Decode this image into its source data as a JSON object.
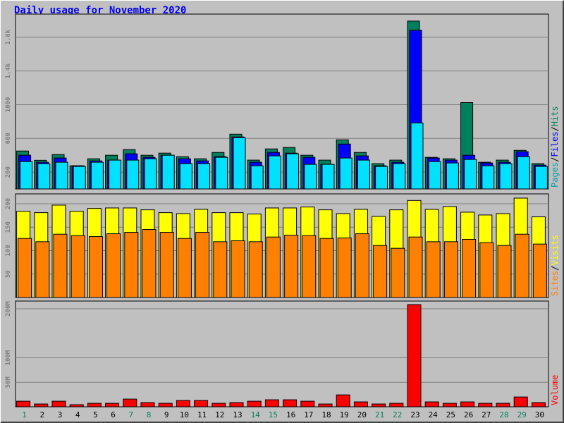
{
  "legend_separator": "/",
  "chart_data": [
    {
      "type": "bar",
      "title": "Daily usage for November 2020",
      "ylim": [
        0,
        2058
      ],
      "yticks": [
        200,
        600,
        1000,
        {
          "value": 1400,
          "label": "1.4k"
        },
        {
          "value": 1800,
          "label": "1.8k"
        }
      ],
      "grid": true,
      "series": [
        {
          "name": "Hits",
          "color": "#00805c",
          "values": [
            450,
            340,
            408,
            275,
            358,
            400,
            467,
            400,
            425,
            383,
            358,
            433,
            650,
            342,
            475,
            492,
            400,
            342,
            583,
            433,
            300,
            342,
            1992,
            375,
            358,
            1025,
            317,
            342,
            458,
            300
          ]
        },
        {
          "name": "Files",
          "color": "#0000ff",
          "values": [
            400,
            317,
            367,
            275,
            333,
            342,
            417,
            375,
            400,
            358,
            333,
            383,
            617,
            317,
            433,
            425,
            375,
            292,
            533,
            392,
            275,
            317,
            1883,
            367,
            342,
            400,
            308,
            317,
            442,
            283
          ]
        },
        {
          "name": "Pages",
          "color": "#00e0ff",
          "values": [
            325,
            300,
            317,
            267,
            317,
            342,
            342,
            358,
            400,
            300,
            300,
            375,
            608,
            275,
            392,
            417,
            292,
            292,
            367,
            342,
            267,
            300,
            783,
            325,
            308,
            350,
            275,
            300,
            383,
            267
          ]
        }
      ]
    },
    {
      "type": "bar",
      "ylim": [
        0,
        218
      ],
      "yticks": [
        50,
        100,
        150,
        200
      ],
      "grid": true,
      "series": [
        {
          "name": "Visits",
          "color": "#ffff00",
          "values": [
            184,
            181,
            197,
            184,
            190,
            191,
            191,
            187,
            181,
            179,
            188,
            181,
            181,
            178,
            191,
            191,
            193,
            187,
            179,
            188,
            173,
            187,
            207,
            188,
            194,
            182,
            176,
            179,
            212,
            172
          ]
        },
        {
          "name": "Sites",
          "color": "#ff8000",
          "values": [
            126,
            119,
            135,
            132,
            130,
            136,
            139,
            145,
            139,
            126,
            139,
            119,
            121,
            119,
            129,
            133,
            132,
            126,
            127,
            136,
            111,
            105,
            129,
            119,
            119,
            124,
            117,
            111,
            135,
            114
          ]
        }
      ]
    },
    {
      "type": "bar",
      "ylim": [
        0,
        213000000
      ],
      "yticks": [
        {
          "value": 50000000,
          "label": "50M"
        },
        {
          "value": 100000000,
          "label": "100M"
        },
        {
          "value": 200000000,
          "label": "200M"
        }
      ],
      "grid": true,
      "categories": [
        "1",
        "2",
        "3",
        "4",
        "5",
        "6",
        "7",
        "8",
        "9",
        "10",
        "11",
        "12",
        "13",
        "14",
        "15",
        "16",
        "17",
        "18",
        "19",
        "20",
        "21",
        "22",
        "23",
        "24",
        "25",
        "26",
        "27",
        "28",
        "29",
        "30"
      ],
      "category_colors": [
        "#00805c",
        "#000000",
        "#000000",
        "#000000",
        "#000000",
        "#000000",
        "#00805c",
        "#00805c",
        "#000000",
        "#000000",
        "#000000",
        "#000000",
        "#000000",
        "#00805c",
        "#00805c",
        "#000000",
        "#000000",
        "#000000",
        "#000000",
        "#000000",
        "#00805c",
        "#00805c",
        "#000000",
        "#000000",
        "#000000",
        "#000000",
        "#000000",
        "#00805c",
        "#00805c",
        "#000000"
      ],
      "series": [
        {
          "name": "Volume",
          "color": "#ff0000",
          "values": [
            11400000,
            5700000,
            11400000,
            4300000,
            7100000,
            7100000,
            15700000,
            8600000,
            7100000,
            12900000,
            12900000,
            7100000,
            8600000,
            11400000,
            14300000,
            14300000,
            11400000,
            5700000,
            24300000,
            10000000,
            5700000,
            7100000,
            208600000,
            10000000,
            7100000,
            10000000,
            7100000,
            7100000,
            20000000,
            8600000
          ]
        }
      ]
    }
  ]
}
